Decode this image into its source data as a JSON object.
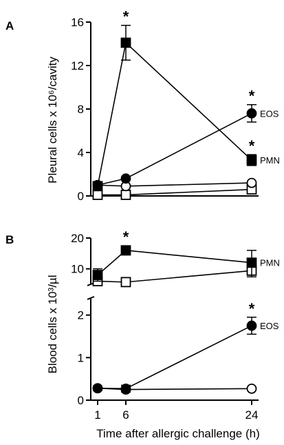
{
  "chart_data": [
    {
      "panel": "A",
      "type": "line",
      "ylabel": "Pleural cells x 10⁶/cavity",
      "yticks": [
        "0",
        "4",
        "8",
        "12",
        "16"
      ],
      "ylim": [
        0,
        16
      ],
      "x": [
        1,
        6,
        24
      ],
      "series": [
        {
          "name": "PMN",
          "marker": "filled-square",
          "values": [
            0.9,
            14.1,
            3.3
          ],
          "err": [
            0,
            1.6,
            0.5
          ],
          "stars": [
            false,
            true,
            true
          ]
        },
        {
          "name": "EOS",
          "marker": "filled-circle",
          "values": [
            1.0,
            1.6,
            7.6
          ],
          "err": [
            0,
            0,
            0.8
          ],
          "stars": [
            false,
            false,
            true
          ]
        },
        {
          "name": "",
          "marker": "open-circle",
          "values": [
            1.0,
            0.9,
            1.2
          ],
          "err": [
            0,
            0,
            0
          ],
          "stars": [
            false,
            false,
            false
          ]
        },
        {
          "name": "",
          "marker": "open-square",
          "values": [
            0.1,
            0.1,
            0.6
          ],
          "err": [
            0,
            0,
            0.3
          ],
          "stars": [
            false,
            false,
            false
          ]
        }
      ]
    },
    {
      "panel": "B",
      "type": "line",
      "ylabel": "Blood cells x 10³/µl",
      "axis_break": true,
      "upper": {
        "yticks": [
          "10",
          "20"
        ],
        "ylim": [
          5,
          20
        ],
        "series": [
          {
            "name": "PMN",
            "marker": "filled-square",
            "values": [
              8,
              16,
              12
            ],
            "err": [
              2,
              1.5,
              4
            ],
            "stars": [
              false,
              true,
              false
            ]
          },
          {
            "name": "",
            "marker": "open-square",
            "values": [
              6,
              5.7,
              9.4
            ],
            "err": [
              0.8,
              0.8,
              2
            ],
            "stars": [
              false,
              false,
              false
            ]
          }
        ]
      },
      "lower": {
        "yticks": [
          "0",
          "1",
          "2"
        ],
        "ylim": [
          0,
          2.4
        ],
        "series": [
          {
            "name": "EOS",
            "marker": "filled-circle",
            "values": [
              0.28,
              0.27,
              1.75
            ],
            "err": [
              0.05,
              0.08,
              0.2
            ],
            "stars": [
              false,
              false,
              true
            ]
          },
          {
            "name": "",
            "marker": "open-circle",
            "values": [
              0.28,
              0.25,
              0.27
            ],
            "err": [
              0.05,
              0.05,
              0
            ],
            "stars": [
              false,
              false,
              false
            ]
          }
        ]
      },
      "x": [
        1,
        6,
        24
      ],
      "xticks": [
        "1",
        "6",
        "24"
      ],
      "xlabel": "Time after allergic challenge (h)"
    }
  ],
  "star_symbol": "*"
}
